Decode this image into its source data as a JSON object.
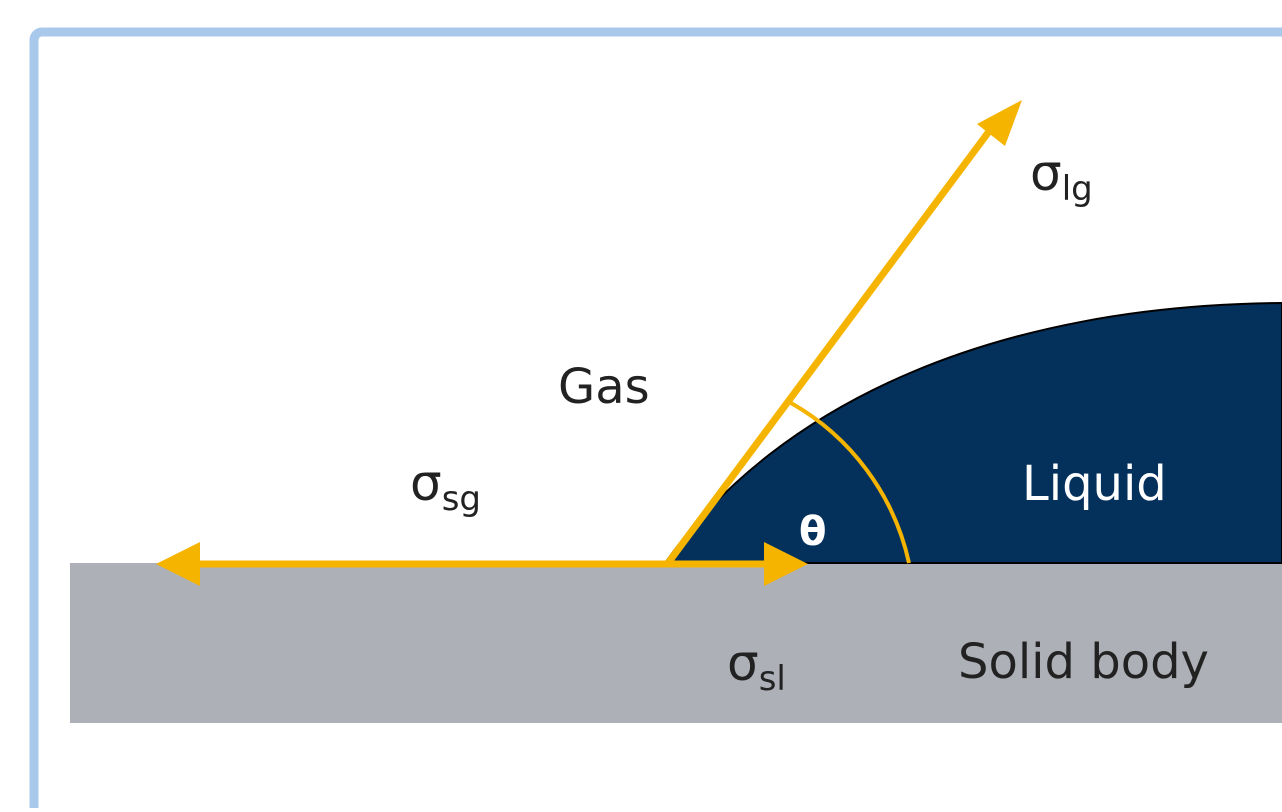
{
  "labels": {
    "gas": "Gas",
    "liquid": "Liquid",
    "solid": "Solid body",
    "theta": "θ"
  },
  "tensions": {
    "liquid_gas": {
      "symbol": "σ",
      "subscript": "lg"
    },
    "solid_gas": {
      "symbol": "σ",
      "subscript": "sg"
    },
    "solid_liquid": {
      "symbol": "σ",
      "subscript": "sl"
    }
  },
  "colors": {
    "frame_border": "#a8c8ec",
    "background": "#ffffff",
    "solid": "#aeb0b7",
    "liquid": "#04305c",
    "arrow": "#f5b400",
    "text_dark": "#222222",
    "text_light": "#ffffff"
  }
}
